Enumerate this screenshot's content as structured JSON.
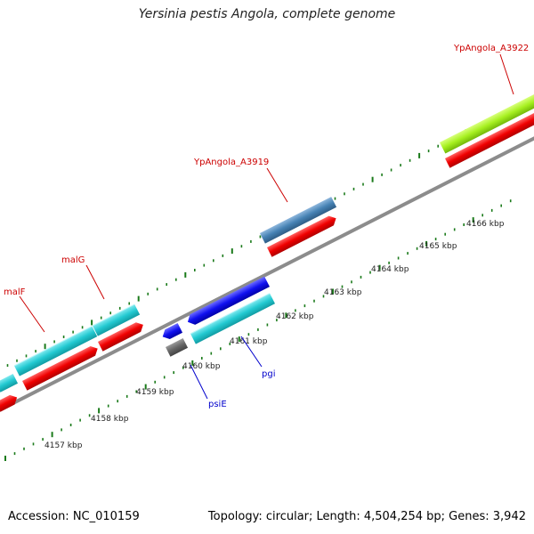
{
  "title": "Yersinia pestis Angola, complete genome",
  "footer": {
    "accession": "Accession: NC_010159",
    "summary": "Topology: circular; Length: 4,504,254 bp; Genes: 3,942"
  },
  "colors": {
    "backbone": "#8c8c8c",
    "tick": "#1a7a1a",
    "label_forward": "#cc0000",
    "label_reverse": "#0000cc"
  },
  "ticks": [
    "4157 kbp",
    "4158 kbp",
    "4159 kbp",
    "4160 kbp",
    "4161 kbp",
    "4162 kbp",
    "4163 kbp",
    "4164 kbp",
    "4165 kbp",
    "4166 kbp"
  ],
  "labels": {
    "ypa3922": "YpAngola_A3922",
    "ypa3919": "YpAngola_A3919",
    "malG": "malG",
    "malF": "malF",
    "pgi": "pgi",
    "psiE": "psiE"
  }
}
